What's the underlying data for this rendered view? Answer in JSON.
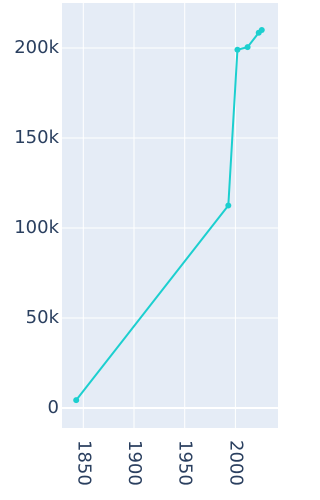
{
  "chart_data": {
    "type": "line",
    "x": [
      1843,
      1993,
      2002,
      2012,
      2023,
      2026
    ],
    "series": [
      {
        "color": "#1ccfcf",
        "values": [
          4400,
          112500,
          199000,
          200500,
          208500,
          210000
        ]
      }
    ],
    "xlim": [
      1829,
      2042
    ],
    "xticks": [
      1850,
      1900,
      1950,
      2000
    ],
    "ylim": [
      -11100,
      225000
    ],
    "yticks": [
      0,
      {
        "value": 50000,
        "label": "50k"
      },
      {
        "value": 100000,
        "label": "100k"
      },
      {
        "value": 150000,
        "label": "150k"
      },
      {
        "value": 200000,
        "label": "200k"
      }
    ],
    "grid": true
  }
}
